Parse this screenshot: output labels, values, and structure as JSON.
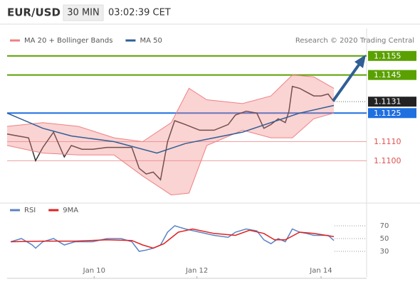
{
  "header": {
    "symbol": "EUR/USD",
    "interval": "30 MIN",
    "time": "03:02:39 CET"
  },
  "chart_data": [
    {
      "type": "line",
      "credit": "Research © 2020 Trading Central",
      "xlim": [
        0,
        168
      ],
      "ylim": [
        1.108,
        1.1162
      ],
      "series": [
        {
          "color": "#333333",
          "x": [
            0,
            5,
            10,
            13.3,
            16.7,
            21.7,
            26.7,
            30,
            35,
            40,
            46.7,
            53.3,
            58.3,
            61.7,
            65,
            68.3,
            71.7,
            75,
            78.3,
            83.3,
            90,
            96.7,
            103.3,
            106.7,
            111.7,
            116.7,
            120,
            123.3,
            126.7,
            130,
            131.7,
            133.3,
            136.7,
            140,
            143.3,
            146.7,
            150,
            152.7
          ],
          "values": [
            1.1114,
            1.1113,
            1.1112,
            1.11,
            1.1107,
            1.1115,
            1.1102,
            1.1108,
            1.1106,
            1.1106,
            1.1107,
            1.1107,
            1.1107,
            1.1096,
            1.1093,
            1.1094,
            1.109,
            1.111,
            1.1121,
            1.1119,
            1.1116,
            1.1116,
            1.1119,
            1.1124,
            1.1126,
            1.1125,
            1.1117,
            1.1119,
            1.1122,
            1.112,
            1.1126,
            1.1139,
            1.1138,
            1.1136,
            1.1134,
            1.1134,
            1.1135,
            1.1131
          ]
        },
        {
          "name": "MA 20 + Bollinger Bands",
          "color": "#f08080",
          "x": [
            0,
            16.7,
            33.3,
            50,
            63.3,
            76.7,
            85,
            93.3,
            110,
            123.3,
            133.3,
            143.3,
            152.7
          ],
          "upper": [
            1.1118,
            1.112,
            1.1118,
            1.1112,
            1.111,
            1.112,
            1.1138,
            1.1132,
            1.113,
            1.1134,
            1.1145,
            1.1144,
            1.1138
          ],
          "lower": [
            1.1108,
            1.1104,
            1.1103,
            1.1103,
            1.1092,
            1.1082,
            1.1083,
            1.1108,
            1.1116,
            1.1112,
            1.1112,
            1.1122,
            1.1125
          ]
        },
        {
          "name": "MA 50",
          "color": "#2f5f95",
          "x": [
            0,
            16.7,
            30,
            50,
            70,
            83.3,
            96.7,
            110,
            123.3,
            136.7,
            152.7
          ],
          "values": [
            1.1125,
            1.1117,
            1.1113,
            1.111,
            1.1104,
            1.1109,
            1.1112,
            1.1115,
            1.112,
            1.1125,
            1.1129
          ]
        }
      ],
      "levels": [
        {
          "value": 1.1155,
          "color": "#5aa000",
          "kind": "box"
        },
        {
          "value": 1.1145,
          "color": "#5aa000",
          "kind": "box"
        },
        {
          "value": 1.1131,
          "color": "#222222",
          "kind": "current"
        },
        {
          "value": 1.1125,
          "color": "#1e6fe0",
          "kind": "box"
        },
        {
          "value": 1.111,
          "label": "1.1110",
          "color": "#e05050",
          "kind": "text"
        },
        {
          "value": 1.11,
          "label": "1.1100",
          "color": "#e05050",
          "kind": "text"
        }
      ]
    },
    {
      "type": "line",
      "xlim": [
        0,
        168
      ],
      "ylim": [
        0,
        90
      ],
      "yticks": [
        70,
        50,
        30
      ],
      "xticks": [
        {
          "value": 40.7,
          "label": "Jan 10"
        },
        {
          "value": 88.7,
          "label": "Jan 12"
        },
        {
          "value": 146.7,
          "label": "Jan 14"
        }
      ],
      "series": [
        {
          "name": "RSI",
          "color": "#5b84c4",
          "x": [
            1.7,
            6.7,
            11.7,
            13.3,
            16.7,
            21.7,
            26.7,
            31.7,
            40,
            46.7,
            53.3,
            58.3,
            61.7,
            65,
            68.3,
            71.7,
            75,
            78.3,
            83.3,
            90,
            96.7,
            103.3,
            106.7,
            111.7,
            116.7,
            120,
            123.3,
            126.7,
            130,
            133.3,
            136.7,
            140,
            143.3,
            146.7,
            150,
            152.7
          ],
          "values": [
            45,
            50,
            40,
            35,
            45,
            50,
            40,
            45,
            45,
            50,
            50,
            45,
            30,
            32,
            35,
            40,
            60,
            70,
            65,
            60,
            55,
            52,
            60,
            65,
            62,
            48,
            42,
            50,
            45,
            65,
            60,
            58,
            55,
            55,
            55,
            47
          ]
        },
        {
          "name": "9MA",
          "color": "#e02020",
          "x": [
            1.7,
            16.7,
            31.7,
            46.7,
            58.3,
            63.3,
            68.3,
            73.3,
            80,
            86.7,
            96.7,
            106.7,
            113.3,
            120,
            125,
            130,
            136.7,
            143.3,
            152.7
          ],
          "values": [
            45,
            46,
            46,
            48,
            47,
            40,
            35,
            42,
            60,
            65,
            58,
            55,
            63,
            58,
            48,
            48,
            60,
            58,
            53
          ]
        }
      ]
    }
  ]
}
